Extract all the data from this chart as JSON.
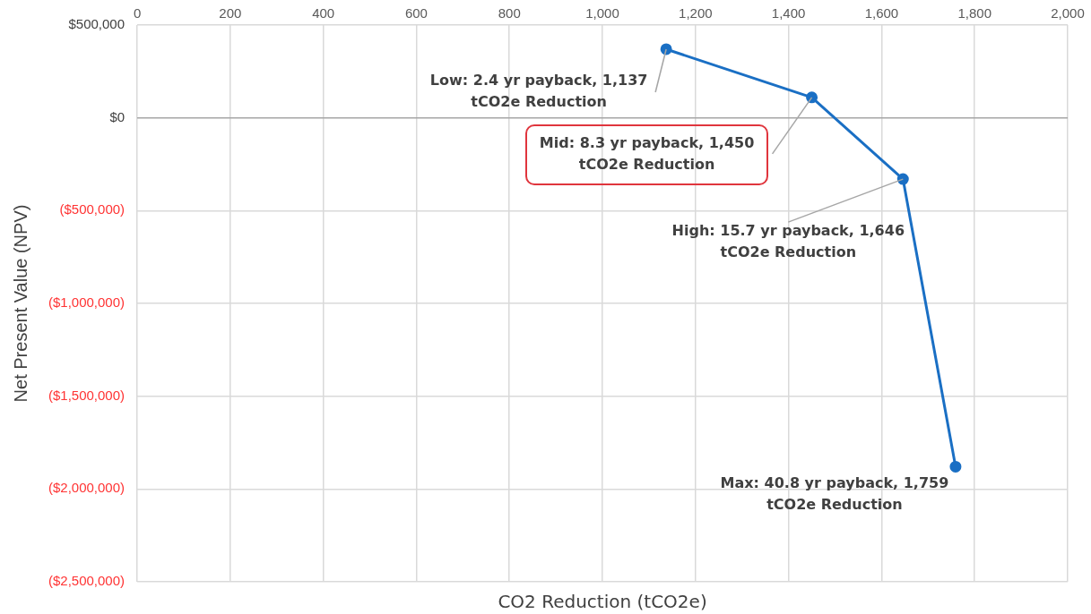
{
  "chart_data": {
    "type": "line",
    "xlabel": "CO2 Reduction (tCO2e)",
    "ylabel": "Net Present Value (NPV)",
    "series": [
      {
        "color": "#1a6fc4",
        "x": [
          1137,
          1450,
          1646,
          1759
        ],
        "values": [
          370000,
          110000,
          -330000,
          -1880000
        ]
      }
    ],
    "xlim": [
      0,
      2000
    ],
    "xticks": [
      0,
      200,
      400,
      600,
      800,
      {
        "value": 1000,
        "label": "1,000"
      },
      {
        "value": 1200,
        "label": "1,200"
      },
      {
        "value": 1400,
        "label": "1,400"
      },
      {
        "value": 1600,
        "label": "1,600"
      },
      {
        "value": 1800,
        "label": "1,800"
      },
      {
        "value": 2000,
        "label": "2,000"
      }
    ],
    "ylim": [
      -2500000,
      500000
    ],
    "yticks": [
      {
        "value": 500000,
        "label": "$500,000"
      },
      {
        "value": 0,
        "label": "$0"
      },
      {
        "value": -500000,
        "label": "($500,000)"
      },
      {
        "value": -1000000,
        "label": "($1,000,000)"
      },
      {
        "value": -1500000,
        "label": "($1,500,000)"
      },
      {
        "value": -2000000,
        "label": "($2,000,000)"
      },
      {
        "value": -2500000,
        "label": "($2,500,000)"
      }
    ],
    "annotations": [
      {
        "text": "Low: 2.4 yr payback, 1,137 tCO2e Reduction",
        "x": 1137,
        "y": 370000
      },
      {
        "text": "Mid: 8.3 yr payback, 1,450 tCO2e Reduction",
        "x": 1450,
        "y": 110000
      },
      {
        "text": "High: 15.7 yr payback, 1,646 tCO2e Reduction",
        "x": 1646,
        "y": -330000
      },
      {
        "text": "Max: 40.8 yr payback, 1,759 tCO2e Reduction",
        "x": 1759,
        "y": -1880000
      }
    ],
    "grid": true,
    "legend": false,
    "marker": "circle",
    "line_style": "solid"
  }
}
